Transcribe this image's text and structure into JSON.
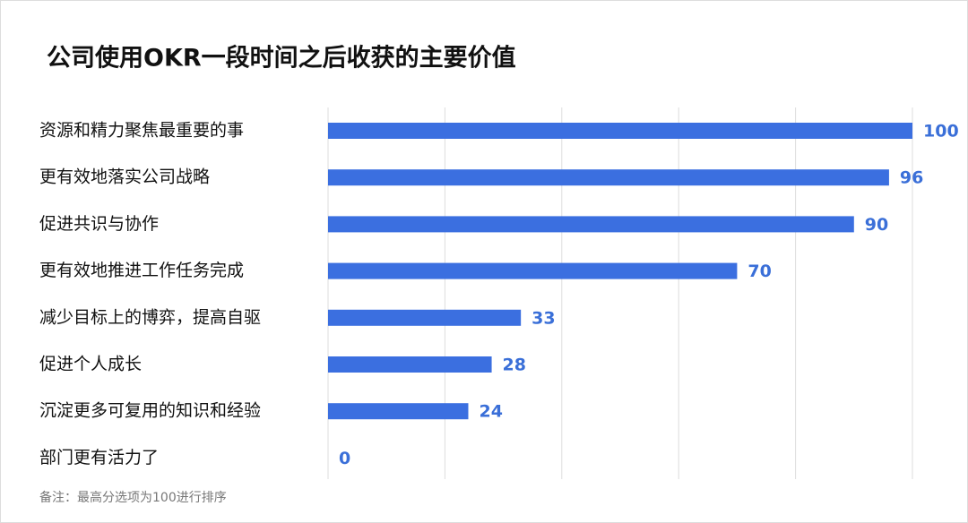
{
  "chart_data": {
    "type": "hbar",
    "title": "公司使用OKR一段时间之后收获的主要价值",
    "categories": [
      "资源和精力聚焦最重要的事",
      "更有效地落实公司战略",
      "促进共识与协作",
      "更有效地推进工作任务完成",
      "减少目标上的博弈，提高自驱",
      "促进个人成长",
      "沉淀更多可复用的知识和经验",
      "部门更有活力了"
    ],
    "values": [
      100,
      96,
      90,
      70,
      33,
      28,
      24,
      0
    ],
    "color": "#3b6fe0",
    "xlim": [
      0,
      100
    ],
    "xticks": [
      0,
      20,
      40,
      60,
      80,
      100
    ],
    "grid": true,
    "note": "备注：最高分选项为100进行排序"
  }
}
